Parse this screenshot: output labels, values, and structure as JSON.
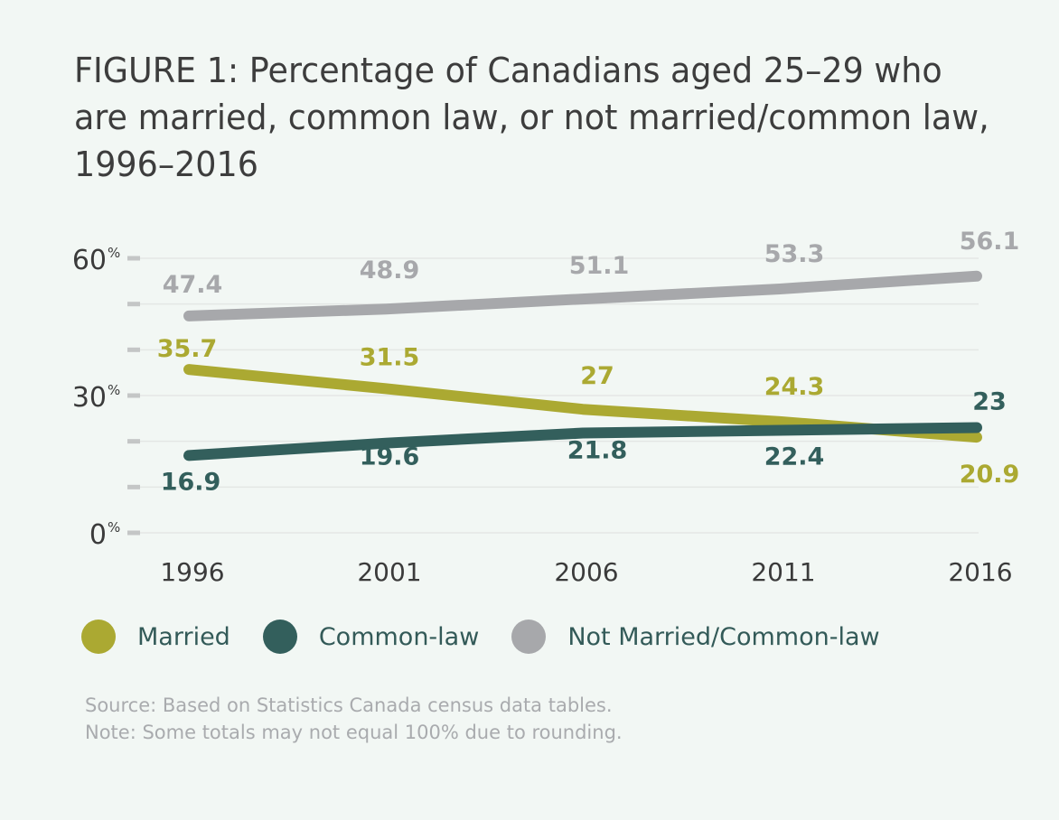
{
  "chart_data": {
    "type": "line",
    "title": "FIGURE 1: Percentage of Canadians aged 25–29 who are married, common law, or not married/common law, 1996–2016",
    "xlabel": "",
    "ylabel": "",
    "x": [
      "1996",
      "2001",
      "2006",
      "2011",
      "2016"
    ],
    "ylim": [
      0,
      60
    ],
    "yticks": [
      0,
      10,
      20,
      30,
      40,
      50,
      60
    ],
    "ytick_labels": [
      {
        "value": 0,
        "num": "0",
        "unit": "%"
      },
      {
        "value": 30,
        "num": "30",
        "unit": "%"
      },
      {
        "value": 60,
        "num": "60",
        "unit": "%"
      }
    ],
    "grid": true,
    "legend_position": "bottom",
    "series": [
      {
        "name": "Married",
        "color": "#aba932",
        "values": [
          35.7,
          31.5,
          27,
          24.3,
          20.9
        ],
        "labels": [
          "35.7",
          "31.5",
          "27",
          "24.3",
          "20.9"
        ]
      },
      {
        "name": "Common-law",
        "color": "#335f5c",
        "values": [
          16.9,
          19.6,
          21.8,
          22.4,
          23
        ],
        "labels": [
          "16.9",
          "19.6",
          "21.8",
          "22.4",
          "23"
        ]
      },
      {
        "name": "Not Married/Common-law",
        "color": "#a7a8ab",
        "values": [
          47.4,
          48.9,
          51.1,
          53.3,
          56.1
        ],
        "labels": [
          "47.4",
          "48.9",
          "51.1",
          "53.3",
          "56.1"
        ]
      }
    ]
  },
  "header": {
    "title": "FIGURE 1: Percentage of Canadians aged 25–29 who are married, common law, or not married/common law, 1996–2016"
  },
  "legend": [
    {
      "label": "Married",
      "color": "#aba932"
    },
    {
      "label": "Common-law",
      "color": "#335f5c"
    },
    {
      "label": "Not Married/Common-law",
      "color": "#a7a8ab"
    }
  ],
  "footer": {
    "source": "Source: Based on Statistics Canada census data tables.",
    "note": "Note: Some totals may not equal 100% due to rounding."
  }
}
